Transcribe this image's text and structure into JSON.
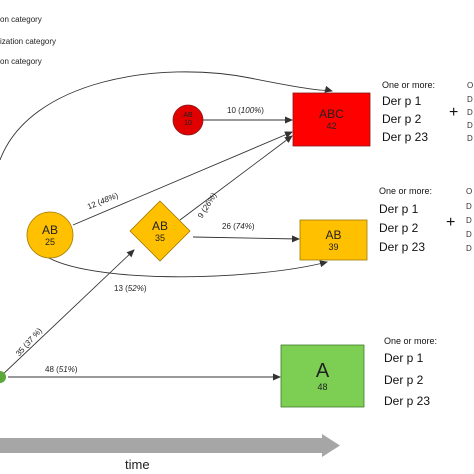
{
  "legend": [
    "on category",
    "ization category",
    "on category"
  ],
  "nodes": {
    "abc_circle": {
      "label": "AB",
      "count": "10",
      "color": "#e00000"
    },
    "ab_circle": {
      "label": "AB",
      "count": "25",
      "color": "#ffc000"
    },
    "ab_diamond": {
      "label": "AB",
      "count": "35",
      "color": "#ffc000"
    },
    "abc_box": {
      "label": "ABC",
      "count": "42",
      "color": "#ff0000"
    },
    "ab_box": {
      "label": "AB",
      "count": "39",
      "color": "#ffc000"
    },
    "a_box": {
      "label": "A",
      "count": "48",
      "color": "#7ccf52"
    }
  },
  "edges": {
    "e1": {
      "n": "10 (",
      "pct": "100%",
      "close": ")"
    },
    "e2": {
      "n": "12 (",
      "pct": "48%",
      "close": ")"
    },
    "e3": {
      "n": "9 (",
      "pct": "26%",
      "close": ")"
    },
    "e4": {
      "n": "26 (",
      "pct": "74%",
      "close": ")"
    },
    "e5": {
      "n": "13 (",
      "pct": "52%",
      "close": ")"
    },
    "e6": {
      "n": "35 (",
      "pct": "37 %",
      "close": ")"
    },
    "e7": {
      "n": "48 (",
      "pct": "51%",
      "close": ")"
    }
  },
  "panels": {
    "abc": {
      "heading": "One or more:",
      "items": [
        "Der p 1",
        "Der p 2",
        "Der p 23"
      ],
      "plus": "+",
      "cut_heading": "O",
      "cut_items": [
        "D",
        "D",
        "D",
        "D"
      ]
    },
    "ab": {
      "heading": "One or more:",
      "items": [
        "Der p 1",
        "Der p 2",
        "Der p 23"
      ],
      "plus": "+",
      "cut_heading": "O",
      "cut_items": [
        "D",
        "D",
        "D",
        "D"
      ]
    },
    "a": {
      "heading": "One or more:",
      "items": [
        "Der p 1",
        "Der p 2",
        "Der p 23"
      ]
    }
  },
  "axis": {
    "label": "time"
  }
}
